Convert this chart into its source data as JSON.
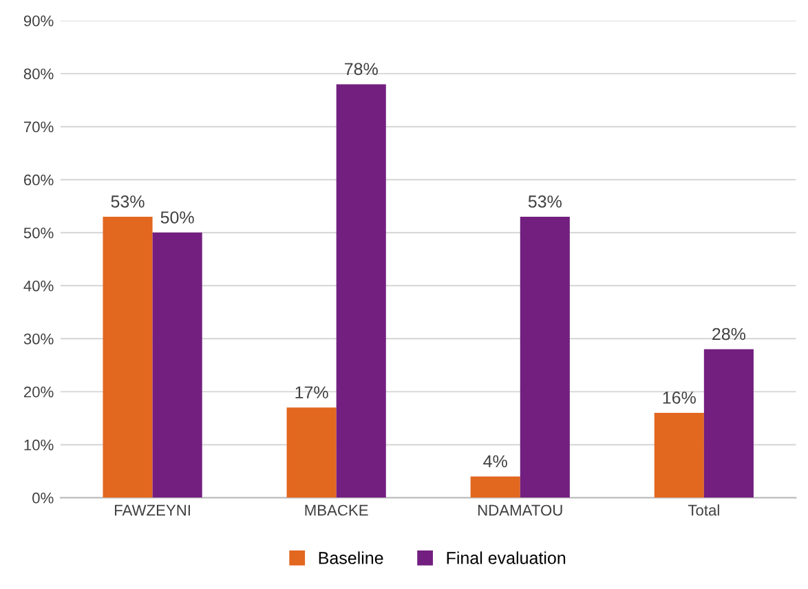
{
  "chart_data": {
    "type": "bar",
    "categories": [
      "FAWZEYNI",
      "MBACKE",
      "NDAMATOU",
      "Total"
    ],
    "series": [
      {
        "name": "Baseline",
        "color": "#e2671f",
        "values": [
          53,
          17,
          4,
          16
        ],
        "value_labels": [
          "53%",
          "17%",
          "4%",
          "16%"
        ]
      },
      {
        "name": "Final evaluation",
        "color": "#731f80",
        "values": [
          50,
          78,
          53,
          28
        ],
        "value_labels": [
          "50%",
          "78%",
          "53%",
          "28%"
        ]
      }
    ],
    "ylim": [
      0,
      90
    ],
    "yticks": [
      {
        "value": 0,
        "label": "0%"
      },
      {
        "value": 10,
        "label": "10%"
      },
      {
        "value": 20,
        "label": "20%"
      },
      {
        "value": 30,
        "label": "30%"
      },
      {
        "value": 40,
        "label": "40%"
      },
      {
        "value": 50,
        "label": "50%"
      },
      {
        "value": 60,
        "label": "60%"
      },
      {
        "value": 70,
        "label": "70%"
      },
      {
        "value": 80,
        "label": "80%"
      },
      {
        "value": 90,
        "label": "90%"
      }
    ],
    "grid": "y",
    "legend": "bottom"
  }
}
